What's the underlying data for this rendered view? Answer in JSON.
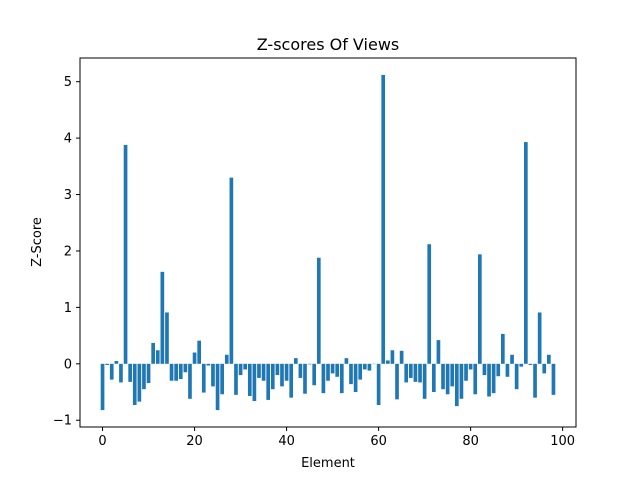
{
  "chart_data": {
    "type": "bar",
    "title": "Z-scores Of Views",
    "xlabel": "Element",
    "ylabel": "Z-Score",
    "xlim": [
      -4.9,
      102.9
    ],
    "ylim": [
      -1.12,
      5.42
    ],
    "xticks": [
      0,
      20,
      40,
      60,
      80,
      100
    ],
    "yticks": [
      -1,
      0,
      1,
      2,
      3,
      4,
      5
    ],
    "grid": false,
    "bar_color": "#1f77b4",
    "x": [
      0,
      1,
      2,
      3,
      4,
      5,
      6,
      7,
      8,
      9,
      10,
      11,
      12,
      13,
      14,
      15,
      16,
      17,
      18,
      19,
      20,
      21,
      22,
      23,
      24,
      25,
      26,
      27,
      28,
      29,
      30,
      31,
      32,
      33,
      34,
      35,
      36,
      37,
      38,
      39,
      40,
      41,
      42,
      43,
      44,
      45,
      46,
      47,
      48,
      49,
      50,
      51,
      52,
      53,
      54,
      55,
      56,
      57,
      58,
      59,
      60,
      61,
      62,
      63,
      64,
      65,
      66,
      67,
      68,
      69,
      70,
      71,
      72,
      73,
      74,
      75,
      76,
      77,
      78,
      79,
      80,
      81,
      82,
      83,
      84,
      85,
      86,
      87,
      88,
      89,
      90,
      91,
      92,
      93,
      94,
      95,
      96,
      97,
      98
    ],
    "values": [
      -0.82,
      -0.02,
      -0.28,
      0.05,
      -0.33,
      3.88,
      -0.32,
      -0.73,
      -0.67,
      -0.45,
      -0.34,
      0.37,
      0.24,
      1.63,
      0.91,
      -0.3,
      -0.3,
      -0.27,
      -0.15,
      -0.62,
      0.2,
      0.41,
      -0.51,
      -0.03,
      -0.4,
      -0.82,
      -0.54,
      0.16,
      3.3,
      -0.55,
      -0.2,
      -0.1,
      -0.57,
      -0.66,
      -0.25,
      -0.3,
      -0.64,
      -0.45,
      -0.2,
      -0.4,
      -0.3,
      -0.6,
      0.1,
      -0.25,
      -0.53,
      -0.01,
      -0.38,
      1.88,
      -0.52,
      -0.3,
      -0.17,
      -0.23,
      -0.52,
      0.1,
      -0.36,
      -0.5,
      -0.28,
      -0.1,
      -0.12,
      0.0,
      -0.73,
      5.12,
      0.06,
      0.24,
      -0.63,
      0.23,
      -0.33,
      -0.25,
      -0.32,
      -0.33,
      -0.62,
      2.12,
      -0.5,
      0.42,
      -0.45,
      -0.54,
      -0.4,
      -0.75,
      -0.62,
      -0.3,
      -0.1,
      -0.54,
      1.94,
      -0.2,
      -0.58,
      -0.52,
      -0.22,
      0.53,
      -0.23,
      0.16,
      -0.45,
      -0.05,
      3.93,
      -0.02,
      -0.6,
      0.91,
      -0.17,
      0.16,
      -0.55
    ]
  }
}
